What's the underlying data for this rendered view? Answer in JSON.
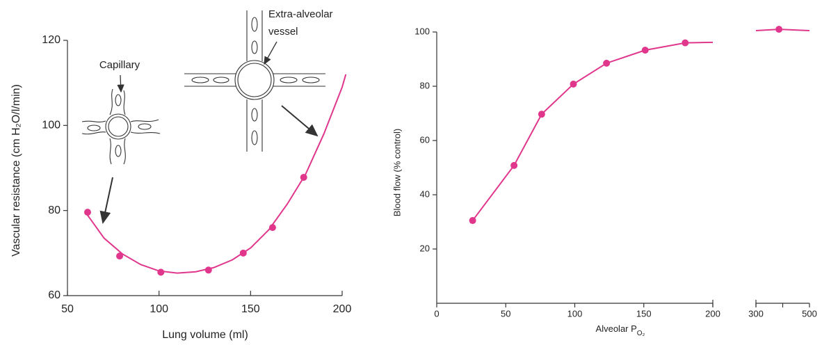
{
  "chart_data": [
    {
      "type": "line",
      "ylabel": "Vascular resistance (cm H₂O/l/min)",
      "xlabel": "Lung volume (ml)",
      "xlim": [
        50,
        200
      ],
      "xticks": [
        50,
        100,
        150,
        200
      ],
      "ylim": [
        60,
        120
      ],
      "yticks": [
        60,
        80,
        100,
        120
      ],
      "annotations": [
        "Capillary",
        "Extra-alveolar",
        "vessel"
      ],
      "series": [
        {
          "color": "#e0368c",
          "markers": false,
          "x": [
            60,
            70,
            80,
            90,
            100,
            110,
            120,
            130,
            140,
            150,
            160,
            170,
            180,
            190,
            200,
            202
          ],
          "values": [
            79.5,
            73.5,
            69.8,
            67.3,
            65.8,
            65.3,
            65.6,
            66.6,
            68.4,
            71.2,
            75.5,
            81.5,
            88.5,
            98,
            109,
            112
          ]
        },
        {
          "color": "#e0368c",
          "markers": true,
          "x": [
            61,
            78.5,
            101,
            127,
            146,
            162,
            179
          ],
          "values": [
            79.6,
            69.3,
            65.5,
            66,
            70,
            76,
            87.8
          ]
        }
      ]
    },
    {
      "type": "line",
      "ylabel": "Blood flow (% control)",
      "xlabel": "Alveolar P",
      "xlabel_sub": "O₂",
      "ylim": [
        0,
        100
      ],
      "yticks": [
        20,
        40,
        60,
        80,
        100
      ],
      "xsegments": [
        {
          "xlim": [
            0,
            200
          ],
          "xticks": [
            0,
            50,
            100,
            150,
            200
          ]
        },
        {
          "xlim": [
            300,
            500
          ],
          "xticks": [
            300,
            500
          ],
          "xminorticks": [
            400
          ]
        }
      ],
      "series": [
        {
          "color": "#e0368c",
          "markers": false,
          "x": [
            26,
            56,
            76,
            99,
            123,
            151,
            180,
            200,
            300,
            386,
            500
          ],
          "values": [
            30.5,
            50.8,
            69.7,
            80.8,
            88.5,
            93.3,
            96,
            96.2,
            100.5,
            101,
            100.5
          ]
        },
        {
          "color": "#e0368c",
          "markers": true,
          "x": [
            26,
            56,
            76,
            99,
            123,
            151,
            180,
            386
          ],
          "values": [
            30.5,
            50.8,
            69.7,
            80.8,
            88.5,
            93.3,
            96,
            101
          ]
        }
      ]
    }
  ]
}
